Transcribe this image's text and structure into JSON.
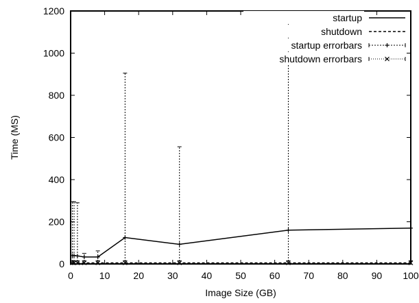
{
  "chart_data": {
    "type": "line",
    "xlabel": "Image Size (GB)",
    "ylabel": "Time (MS)",
    "xlim": [
      0,
      100
    ],
    "ylim": [
      0,
      1200
    ],
    "x_ticks": [
      "0",
      "10",
      "20",
      "30",
      "40",
      "50",
      "60",
      "70",
      "80",
      "90",
      "100"
    ],
    "y_ticks": [
      "0",
      "200",
      "400",
      "600",
      "800",
      "1000",
      "1200"
    ],
    "grid": false,
    "legend_position": "top-right",
    "series": [
      {
        "name": "startup",
        "style": "solid",
        "x": [
          0.5,
          1,
          2,
          4,
          8,
          16,
          32,
          64,
          100
        ],
        "y": [
          40,
          40,
          38,
          33,
          33,
          125,
          93,
          160,
          170
        ]
      },
      {
        "name": "shutdown",
        "style": "dashed",
        "x": [
          0.5,
          1,
          2,
          4,
          8,
          16,
          32,
          64,
          100
        ],
        "y": [
          5,
          5,
          5,
          5,
          5,
          5,
          5,
          5,
          5
        ]
      }
    ],
    "errorbars": [
      {
        "name": "startup errorbars",
        "marker": "plus",
        "points": [
          {
            "x": 0.5,
            "y": 40,
            "low": 0,
            "high": 295
          },
          {
            "x": 1,
            "y": 40,
            "low": 0,
            "high": 295
          },
          {
            "x": 2,
            "y": 38,
            "low": 0,
            "high": 290
          },
          {
            "x": 4,
            "y": 33,
            "low": 0,
            "high": 50
          },
          {
            "x": 8,
            "y": 33,
            "low": 0,
            "high": 62
          },
          {
            "x": 16,
            "y": 125,
            "low": 0,
            "high": 905
          },
          {
            "x": 32,
            "y": 93,
            "low": 0,
            "high": 556
          },
          {
            "x": 64,
            "y": 160,
            "low": 0,
            "high": 1200
          },
          {
            "x": 100,
            "y": 170,
            "low": 0,
            "high": 1200
          }
        ]
      },
      {
        "name": "shutdown errorbars",
        "marker": "cross",
        "points": [
          {
            "x": 0.5,
            "y": 5,
            "low": 0,
            "high": 15
          },
          {
            "x": 1,
            "y": 5,
            "low": 0,
            "high": 15
          },
          {
            "x": 2,
            "y": 5,
            "low": 0,
            "high": 15
          },
          {
            "x": 4,
            "y": 5,
            "low": 0,
            "high": 15
          },
          {
            "x": 8,
            "y": 5,
            "low": 0,
            "high": 15
          },
          {
            "x": 16,
            "y": 5,
            "low": 0,
            "high": 15
          },
          {
            "x": 32,
            "y": 5,
            "low": 0,
            "high": 15
          },
          {
            "x": 64,
            "y": 5,
            "low": 0,
            "high": 15
          },
          {
            "x": 100,
            "y": 5,
            "low": 0,
            "high": 15
          }
        ]
      }
    ]
  }
}
